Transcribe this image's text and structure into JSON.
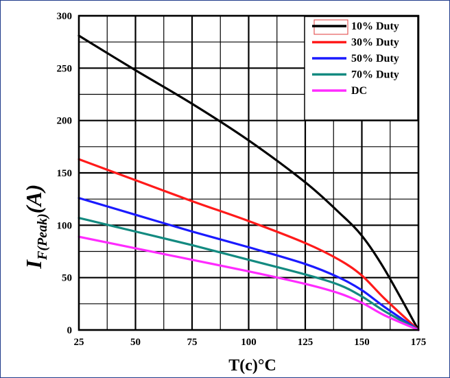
{
  "chart_data": {
    "type": "line",
    "xlabel": "T(c)°C",
    "ylabel": {
      "main": "I",
      "sub": "F(Peak)",
      "unit": "(A)"
    },
    "xlim": [
      25,
      175
    ],
    "ylim": [
      0,
      300
    ],
    "x_ticks": [
      25,
      50,
      75,
      100,
      125,
      150,
      175
    ],
    "y_ticks": [
      0,
      50,
      100,
      150,
      200,
      250,
      300
    ],
    "grid": true,
    "legend_position": "top-right",
    "series": [
      {
        "name": "10% Duty",
        "color": "#000000",
        "x": [
          25,
          50,
          75,
          100,
          125,
          140,
          150,
          160,
          175
        ],
        "y": [
          281,
          248,
          216,
          181,
          141,
          112,
          90,
          58,
          0
        ]
      },
      {
        "name": "30% Duty",
        "color": "#ff1a1a",
        "x": [
          25,
          50,
          75,
          100,
          125,
          140,
          150,
          160,
          175
        ],
        "y": [
          163,
          143,
          123,
          104,
          83,
          67,
          52,
          30,
          0
        ]
      },
      {
        "name": "50% Duty",
        "color": "#1a1aff",
        "x": [
          25,
          50,
          75,
          100,
          125,
          140,
          150,
          160,
          175
        ],
        "y": [
          126,
          110,
          94,
          79,
          63,
          50,
          38,
          22,
          0
        ]
      },
      {
        "name": "70% Duty",
        "color": "#138a80",
        "x": [
          25,
          50,
          75,
          100,
          125,
          140,
          150,
          160,
          175
        ],
        "y": [
          107,
          94,
          81,
          67,
          53,
          43,
          32,
          18,
          0
        ]
      },
      {
        "name": "DC",
        "color": "#ff2bff",
        "x": [
          25,
          50,
          75,
          100,
          125,
          140,
          150,
          160,
          175
        ],
        "y": [
          89,
          78,
          67,
          56,
          44,
          35,
          26,
          14,
          0
        ]
      }
    ]
  }
}
